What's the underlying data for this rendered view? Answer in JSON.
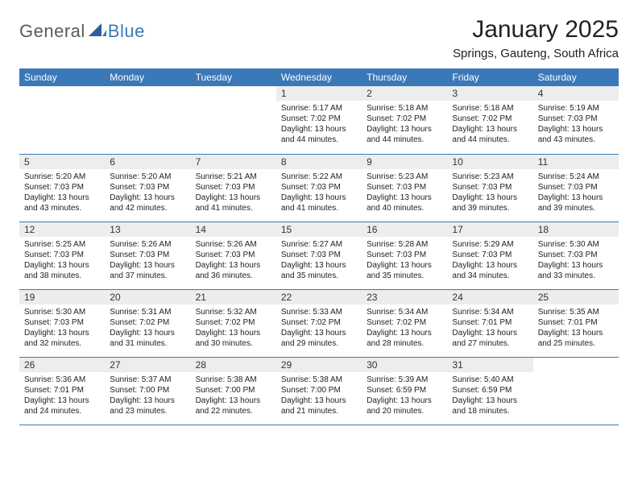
{
  "logo": {
    "general": "General",
    "blue": "Blue"
  },
  "title": "January 2025",
  "subtitle": "Springs, Gauteng, South Africa",
  "styling": {
    "header_bg": "#3b78b8",
    "header_text": "#ffffff",
    "daynum_bg": "#eceded",
    "border_color": "#3b78b8",
    "page_bg": "#ffffff",
    "body_fontsize": 10,
    "daynum_fontsize": 12,
    "title_fontsize": 30,
    "subtitle_fontsize": 15
  },
  "weekdays": [
    "Sunday",
    "Monday",
    "Tuesday",
    "Wednesday",
    "Thursday",
    "Friday",
    "Saturday"
  ],
  "cells": [
    {
      "day": "",
      "lines": []
    },
    {
      "day": "",
      "lines": []
    },
    {
      "day": "",
      "lines": []
    },
    {
      "day": "1",
      "lines": [
        "Sunrise: 5:17 AM",
        "Sunset: 7:02 PM",
        "Daylight: 13 hours",
        "and 44 minutes."
      ]
    },
    {
      "day": "2",
      "lines": [
        "Sunrise: 5:18 AM",
        "Sunset: 7:02 PM",
        "Daylight: 13 hours",
        "and 44 minutes."
      ]
    },
    {
      "day": "3",
      "lines": [
        "Sunrise: 5:18 AM",
        "Sunset: 7:02 PM",
        "Daylight: 13 hours",
        "and 44 minutes."
      ]
    },
    {
      "day": "4",
      "lines": [
        "Sunrise: 5:19 AM",
        "Sunset: 7:03 PM",
        "Daylight: 13 hours",
        "and 43 minutes."
      ]
    },
    {
      "day": "5",
      "lines": [
        "Sunrise: 5:20 AM",
        "Sunset: 7:03 PM",
        "Daylight: 13 hours",
        "and 43 minutes."
      ]
    },
    {
      "day": "6",
      "lines": [
        "Sunrise: 5:20 AM",
        "Sunset: 7:03 PM",
        "Daylight: 13 hours",
        "and 42 minutes."
      ]
    },
    {
      "day": "7",
      "lines": [
        "Sunrise: 5:21 AM",
        "Sunset: 7:03 PM",
        "Daylight: 13 hours",
        "and 41 minutes."
      ]
    },
    {
      "day": "8",
      "lines": [
        "Sunrise: 5:22 AM",
        "Sunset: 7:03 PM",
        "Daylight: 13 hours",
        "and 41 minutes."
      ]
    },
    {
      "day": "9",
      "lines": [
        "Sunrise: 5:23 AM",
        "Sunset: 7:03 PM",
        "Daylight: 13 hours",
        "and 40 minutes."
      ]
    },
    {
      "day": "10",
      "lines": [
        "Sunrise: 5:23 AM",
        "Sunset: 7:03 PM",
        "Daylight: 13 hours",
        "and 39 minutes."
      ]
    },
    {
      "day": "11",
      "lines": [
        "Sunrise: 5:24 AM",
        "Sunset: 7:03 PM",
        "Daylight: 13 hours",
        "and 39 minutes."
      ]
    },
    {
      "day": "12",
      "lines": [
        "Sunrise: 5:25 AM",
        "Sunset: 7:03 PM",
        "Daylight: 13 hours",
        "and 38 minutes."
      ]
    },
    {
      "day": "13",
      "lines": [
        "Sunrise: 5:26 AM",
        "Sunset: 7:03 PM",
        "Daylight: 13 hours",
        "and 37 minutes."
      ]
    },
    {
      "day": "14",
      "lines": [
        "Sunrise: 5:26 AM",
        "Sunset: 7:03 PM",
        "Daylight: 13 hours",
        "and 36 minutes."
      ]
    },
    {
      "day": "15",
      "lines": [
        "Sunrise: 5:27 AM",
        "Sunset: 7:03 PM",
        "Daylight: 13 hours",
        "and 35 minutes."
      ]
    },
    {
      "day": "16",
      "lines": [
        "Sunrise: 5:28 AM",
        "Sunset: 7:03 PM",
        "Daylight: 13 hours",
        "and 35 minutes."
      ]
    },
    {
      "day": "17",
      "lines": [
        "Sunrise: 5:29 AM",
        "Sunset: 7:03 PM",
        "Daylight: 13 hours",
        "and 34 minutes."
      ]
    },
    {
      "day": "18",
      "lines": [
        "Sunrise: 5:30 AM",
        "Sunset: 7:03 PM",
        "Daylight: 13 hours",
        "and 33 minutes."
      ]
    },
    {
      "day": "19",
      "lines": [
        "Sunrise: 5:30 AM",
        "Sunset: 7:03 PM",
        "Daylight: 13 hours",
        "and 32 minutes."
      ]
    },
    {
      "day": "20",
      "lines": [
        "Sunrise: 5:31 AM",
        "Sunset: 7:02 PM",
        "Daylight: 13 hours",
        "and 31 minutes."
      ]
    },
    {
      "day": "21",
      "lines": [
        "Sunrise: 5:32 AM",
        "Sunset: 7:02 PM",
        "Daylight: 13 hours",
        "and 30 minutes."
      ]
    },
    {
      "day": "22",
      "lines": [
        "Sunrise: 5:33 AM",
        "Sunset: 7:02 PM",
        "Daylight: 13 hours",
        "and 29 minutes."
      ]
    },
    {
      "day": "23",
      "lines": [
        "Sunrise: 5:34 AM",
        "Sunset: 7:02 PM",
        "Daylight: 13 hours",
        "and 28 minutes."
      ]
    },
    {
      "day": "24",
      "lines": [
        "Sunrise: 5:34 AM",
        "Sunset: 7:01 PM",
        "Daylight: 13 hours",
        "and 27 minutes."
      ]
    },
    {
      "day": "25",
      "lines": [
        "Sunrise: 5:35 AM",
        "Sunset: 7:01 PM",
        "Daylight: 13 hours",
        "and 25 minutes."
      ]
    },
    {
      "day": "26",
      "lines": [
        "Sunrise: 5:36 AM",
        "Sunset: 7:01 PM",
        "Daylight: 13 hours",
        "and 24 minutes."
      ]
    },
    {
      "day": "27",
      "lines": [
        "Sunrise: 5:37 AM",
        "Sunset: 7:00 PM",
        "Daylight: 13 hours",
        "and 23 minutes."
      ]
    },
    {
      "day": "28",
      "lines": [
        "Sunrise: 5:38 AM",
        "Sunset: 7:00 PM",
        "Daylight: 13 hours",
        "and 22 minutes."
      ]
    },
    {
      "day": "29",
      "lines": [
        "Sunrise: 5:38 AM",
        "Sunset: 7:00 PM",
        "Daylight: 13 hours",
        "and 21 minutes."
      ]
    },
    {
      "day": "30",
      "lines": [
        "Sunrise: 5:39 AM",
        "Sunset: 6:59 PM",
        "Daylight: 13 hours",
        "and 20 minutes."
      ]
    },
    {
      "day": "31",
      "lines": [
        "Sunrise: 5:40 AM",
        "Sunset: 6:59 PM",
        "Daylight: 13 hours",
        "and 18 minutes."
      ]
    },
    {
      "day": "",
      "lines": []
    }
  ]
}
